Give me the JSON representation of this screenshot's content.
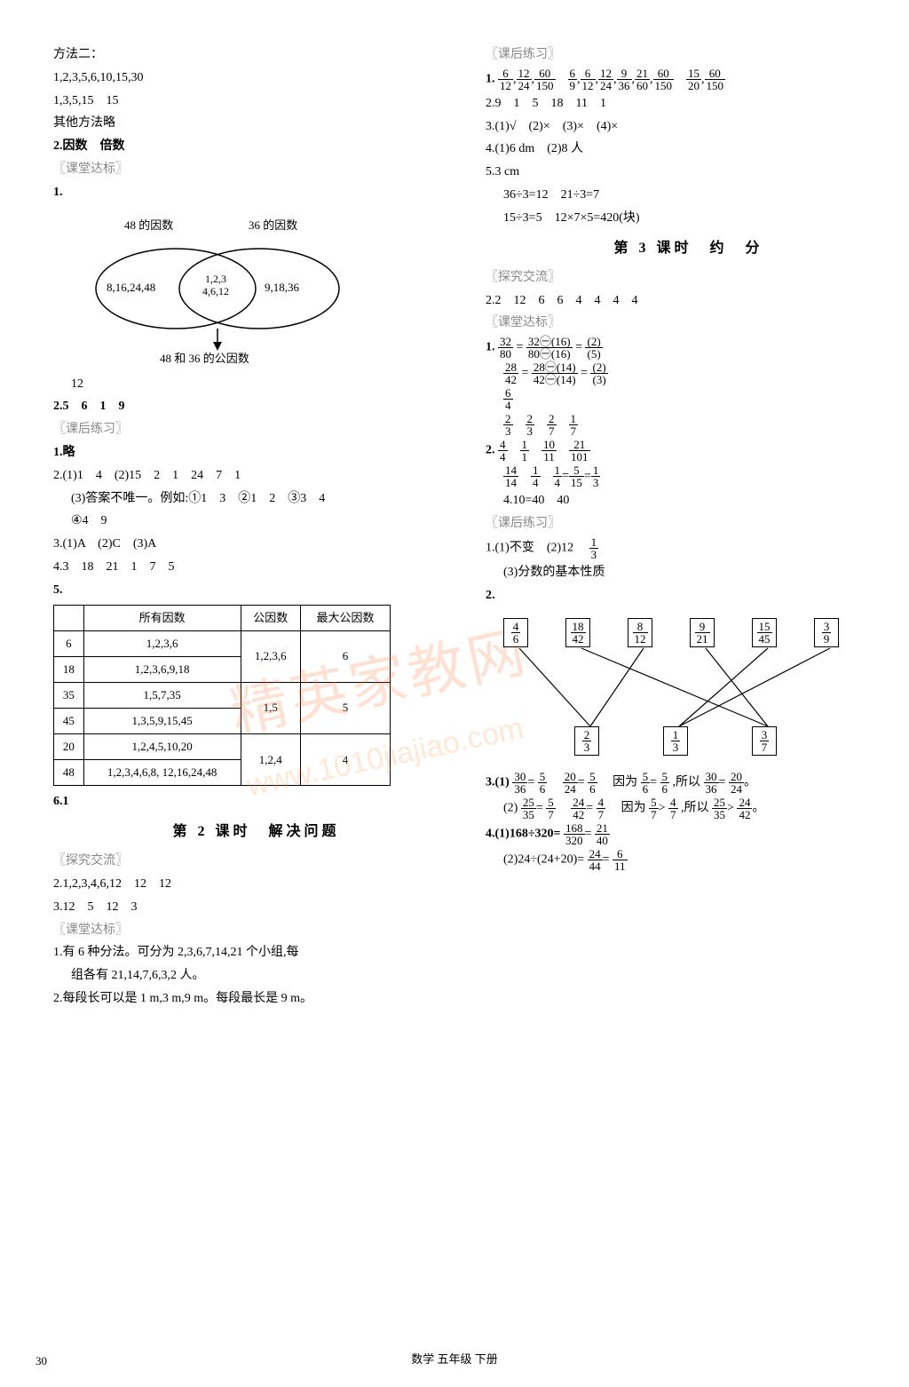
{
  "colors": {
    "text": "#000000",
    "faint": "#888888",
    "border": "#000000",
    "watermark_cn": "rgba(255,120,60,0.22)",
    "watermark_en": "rgba(255,150,70,0.22)",
    "background": "#ffffff"
  },
  "left": {
    "l1": "方法二：",
    "l2": "1,2,3,5,6,10,15,30",
    "l3": "1,3,5,15　15",
    "l4": "其他方法略",
    "l5": "2.因数　倍数",
    "section_a": "〖课堂达标〗",
    "q1": "1.",
    "venn": {
      "left_label": "48 的因数",
      "right_label": "36 的因数",
      "left_set": "8,16,24,48",
      "center_set_top": "1,2,3",
      "center_set_bot": "4,6,12",
      "right_set": "9,18,36",
      "bottom_label": "48 和 36 的公因数"
    },
    "l6": "12",
    "l7": "2.5　6　1　9",
    "section_b": "〖课后练习〗",
    "l8": "1.略",
    "l9": "2.(1)1　4　(2)15　2　1　24　7　1",
    "l10": "(3)答案不唯一。例如:①1　3　②1　2　③3　4",
    "l11": "④4　9",
    "l12": "3.(1)A　(2)C　(3)A",
    "l13": "4.3　18　21　1　7　5",
    "l14": "5.",
    "table": {
      "headers": [
        "",
        "所有因数",
        "公因数",
        "最大公因数"
      ],
      "rows": [
        [
          "6",
          "1,2,3,6",
          "",
          ""
        ],
        [
          "18",
          "1,2,3,6,9,18",
          "1,2,3,6",
          "6"
        ],
        [
          "35",
          "1,5,7,35",
          "",
          ""
        ],
        [
          "45",
          "1,3,5,9,15,45",
          "1,5",
          "5"
        ],
        [
          "20",
          "1,2,4,5,10,20",
          "",
          ""
        ],
        [
          "48",
          "1,2,3,4,6,8, 12,16,24,48",
          "1,2,4",
          "4"
        ]
      ]
    },
    "l15": "6.1",
    "lesson2": "第 2 课时　解决问题",
    "section_c": "〖探究交流〗",
    "l16": "2.1,2,3,4,6,12　12　12",
    "l17": "3.12　5　12　3",
    "section_d": "〖课堂达标〗",
    "l18": "1.有 6 种分法。可分为 2,3,6,7,14,21 个小组,每",
    "l19": "组各有 21,14,7,6,3,2 人。",
    "l20": "2.每段长可以是 1 m,3 m,9 m。每段最长是 9 m。"
  },
  "right": {
    "section_e": "〖课后练习〗",
    "r1a": "1.",
    "r1_fracs": [
      {
        "n": "6",
        "d": "12"
      },
      {
        "n": "12",
        "d": "24"
      },
      {
        "n": "60",
        "d": "150"
      },
      {
        "n": "6",
        "d": "9"
      },
      {
        "n": "6",
        "d": "12"
      },
      {
        "n": "12",
        "d": "24"
      },
      {
        "n": "9",
        "d": "36"
      },
      {
        "n": "21",
        "d": "60"
      },
      {
        "n": "60",
        "d": "150"
      },
      {
        "n": "15",
        "d": "20"
      },
      {
        "n": "60",
        "d": "150"
      }
    ],
    "r2": "2.9　1　5　18　11　1",
    "r3": "3.(1)√　(2)×　(3)×　(4)×",
    "r4": "4.(1)6 dm　(2)8 人",
    "r5": "5.3 cm",
    "r6": "36÷3=12　21÷3=7",
    "r7": "15÷3=5　12×7×5=420(块)",
    "lesson3": "第 3 课时　约　分",
    "section_f": "〖探究交流〗",
    "r8": "2.2　12　6　6　4　4　4　4",
    "section_g": "〖课堂达标〗",
    "r9a": "1.",
    "r9_eq1_lhs": {
      "n": "32",
      "d": "80"
    },
    "r9_eq1_mid": {
      "n": "32㊀(16)",
      "d": "80㊀(16)"
    },
    "r9_eq1_rhs": {
      "n": "(2)",
      "d": "(5)"
    },
    "r9_eq2_lhs": {
      "n": "28",
      "d": "42"
    },
    "r9_eq2_mid": {
      "n": "28㊀(14)",
      "d": "42㊀(14)"
    },
    "r9_eq2_rhs": {
      "n": "(2)",
      "d": "(3)"
    },
    "r10_fracs": [
      {
        "n": "6",
        "d": "4"
      }
    ],
    "r11_fracs": [
      {
        "n": "2",
        "d": "3"
      },
      {
        "n": "2",
        "d": "3"
      },
      {
        "n": "2",
        "d": "7"
      },
      {
        "n": "1",
        "d": "7"
      }
    ],
    "r12a": "2.",
    "r12_fracs": [
      {
        "n": "4",
        "d": "4"
      },
      {
        "n": "1",
        "d": "1"
      },
      {
        "n": "10",
        "d": "11"
      },
      {
        "n": "21",
        "d": "101"
      }
    ],
    "r13_fracs": [
      {
        "n": "14",
        "d": "14"
      },
      {
        "n": "1",
        "d": "4"
      },
      {
        "n": "1",
        "d": "4"
      },
      {
        "n": "5",
        "d": "15"
      },
      {
        "n": "1",
        "d": "3"
      }
    ],
    "r14": "4.10=40　40",
    "section_h": "〖课后练习〗",
    "r15a": "1.(1)不变　(2)12　",
    "r15_f": {
      "n": "1",
      "d": "3"
    },
    "r16": "(3)分数的基本性质",
    "r17": "2.",
    "diagram": {
      "top": [
        {
          "n": "4",
          "d": "6"
        },
        {
          "n": "18",
          "d": "42"
        },
        {
          "n": "8",
          "d": "12"
        },
        {
          "n": "9",
          "d": "21"
        },
        {
          "n": "15",
          "d": "45"
        },
        {
          "n": "3",
          "d": "9"
        }
      ],
      "bot": [
        {
          "n": "2",
          "d": "3"
        },
        {
          "n": "1",
          "d": "3"
        },
        {
          "n": "3",
          "d": "7"
        }
      ],
      "edges": [
        [
          0,
          0
        ],
        [
          1,
          2
        ],
        [
          2,
          0
        ],
        [
          3,
          2
        ],
        [
          4,
          1
        ],
        [
          5,
          1
        ]
      ]
    },
    "r18a": "3.(1)",
    "r18_f1": {
      "n": "30",
      "d": "36"
    },
    "r18_f2": {
      "n": "5",
      "d": "6"
    },
    "r18_f3": {
      "n": "20",
      "d": "24"
    },
    "r18_f4": {
      "n": "5",
      "d": "6"
    },
    "r18_mid": "　因为",
    "r18_f5": {
      "n": "5",
      "d": "6"
    },
    "r18_f6": {
      "n": "5",
      "d": "6"
    },
    "r18_mid2": ",所以",
    "r18_f7": {
      "n": "30",
      "d": "36"
    },
    "r18_f8": {
      "n": "20",
      "d": "24"
    },
    "r19a": "(2)",
    "r19_f1": {
      "n": "25",
      "d": "35"
    },
    "r19_f2": {
      "n": "5",
      "d": "7"
    },
    "r19_f3": {
      "n": "24",
      "d": "42"
    },
    "r19_f4": {
      "n": "4",
      "d": "7"
    },
    "r19_mid": "　因为",
    "r19_f5": {
      "n": "5",
      "d": "7"
    },
    "r19_f6": {
      "n": "4",
      "d": "7"
    },
    "r19_mid2": ",所以",
    "r19_f7": {
      "n": "25",
      "d": "35"
    },
    "r19_f8": {
      "n": "24",
      "d": "42"
    },
    "r20a": "4.(1)168÷320=",
    "r20_f1": {
      "n": "168",
      "d": "320"
    },
    "r20_f2": {
      "n": "21",
      "d": "40"
    },
    "r21a": "(2)24÷(24+20)=",
    "r21_f1": {
      "n": "24",
      "d": "44"
    },
    "r21_f2": {
      "n": "6",
      "d": "11"
    }
  },
  "footer": "数学 五年级 下册",
  "page_number": "30",
  "watermark_cn": "精英家教网",
  "watermark_en": "www.1010jiajiao.com"
}
